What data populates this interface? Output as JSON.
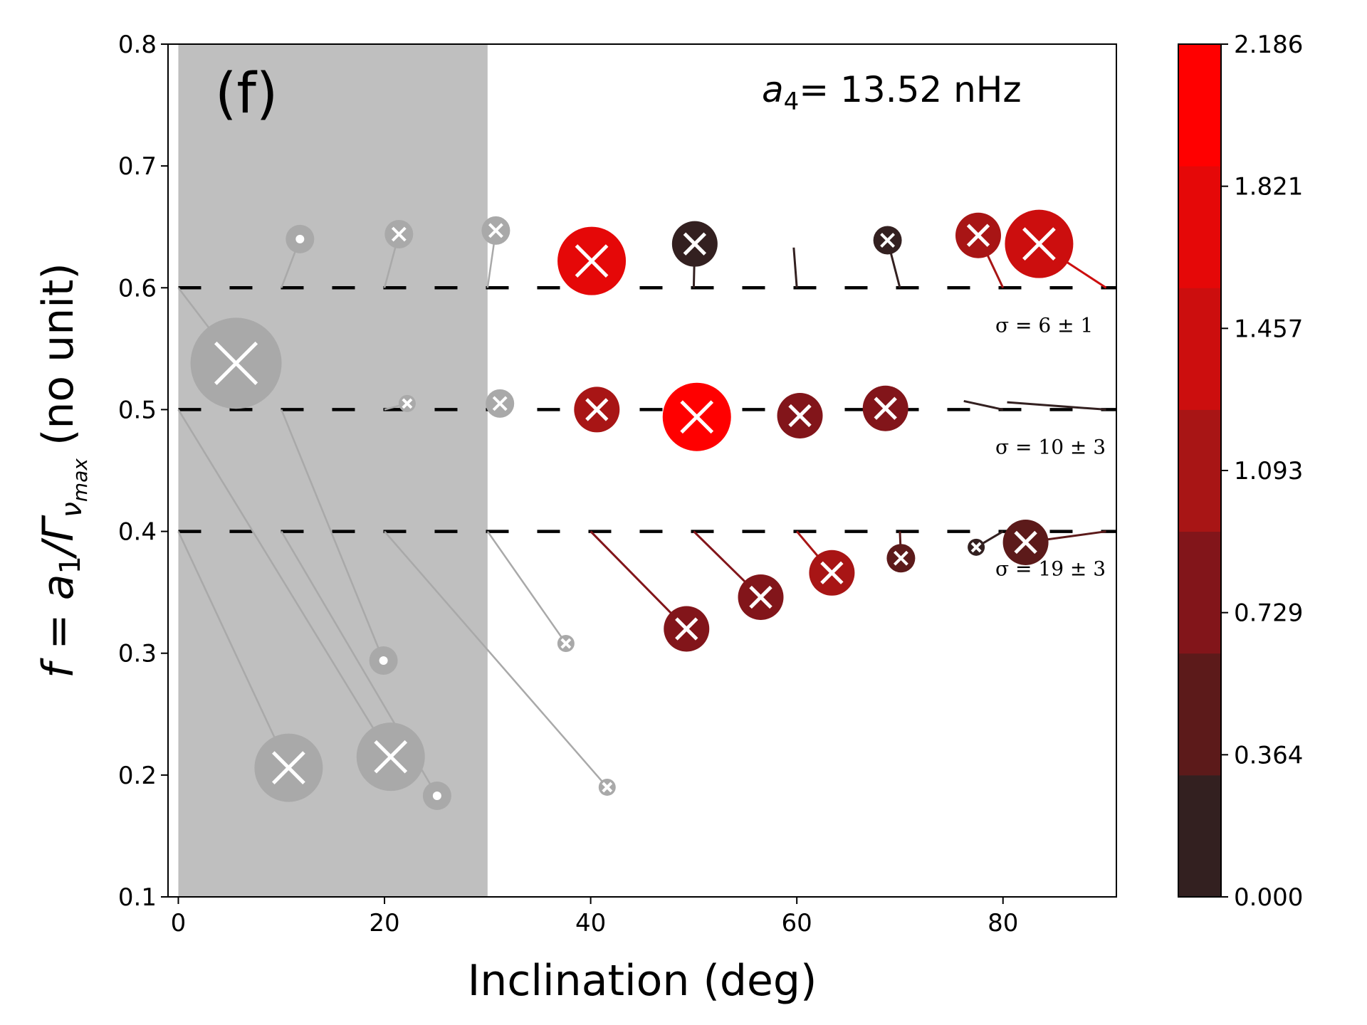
{
  "chart_data": {
    "type": "scatter",
    "panel_label": "(f)",
    "annotation": {
      "symbol": "a",
      "subscript": "4",
      "text": "= 13.52 nHz"
    },
    "xlabel": "Inclination (deg)",
    "ylabel": {
      "prefix": "f = a",
      "sub1": "1",
      "mid": "/Γ",
      "sub2": "ν",
      "sub3": "max",
      "suffix": "(no unit)"
    },
    "xlim": [
      -1,
      91
    ],
    "ylim": [
      0.1,
      0.8
    ],
    "xticks": [
      "0",
      "20",
      "40",
      "60",
      "80"
    ],
    "yticks": [
      "0.1",
      "0.2",
      "0.3",
      "0.4",
      "0.5",
      "0.6",
      "0.7",
      "0.8"
    ],
    "excluded_region": {
      "x": [
        0,
        30
      ],
      "color": "#bfbfbf"
    },
    "reference_levels": [
      {
        "f": 0.6,
        "label": "σ = 6 ± 1"
      },
      {
        "f": 0.5,
        "label": "σ = 10 ± 3"
      },
      {
        "f": 0.4,
        "label": "σ = 19 ± 3"
      }
    ],
    "colorbar": {
      "ticks": [
        "0.000",
        "0.364",
        "0.729",
        "1.093",
        "1.457",
        "1.821",
        "2.186"
      ],
      "colors": [
        "#332020",
        "#5c1a1a",
        "#82151a",
        "#a81515",
        "#cc0e0e",
        "#e50808",
        "#ff0000"
      ],
      "range": [
        0,
        2.186
      ]
    },
    "points": [
      {
        "x0": 10,
        "y0": 0.6,
        "x": 11.8,
        "y": 0.64,
        "size": "small",
        "marker": "dot",
        "value": 0,
        "excluded": true
      },
      {
        "x0": 20,
        "y0": 0.6,
        "x": 21.4,
        "y": 0.644,
        "size": "small",
        "marker": "x",
        "value": 0,
        "excluded": true
      },
      {
        "x0": 30,
        "y0": 0.6,
        "x": 30.8,
        "y": 0.647,
        "size": "small",
        "marker": "x",
        "value": 0,
        "excluded": true
      },
      {
        "x0": 40,
        "y0": 0.6,
        "x": 40.1,
        "y": 0.622,
        "size": "large",
        "marker": "x",
        "value": 1.6,
        "excluded": false
      },
      {
        "x0": 50,
        "y0": 0.6,
        "x": 50.1,
        "y": 0.636,
        "size": "medium",
        "marker": "x",
        "value": 0.3,
        "excluded": false
      },
      {
        "x0": 60,
        "y0": 0.6,
        "x": 59.7,
        "y": 0.633,
        "size": "none",
        "marker": "none",
        "value": 0.2,
        "excluded": false
      },
      {
        "x0": 70,
        "y0": 0.6,
        "x": 68.8,
        "y": 0.639,
        "size": "small",
        "marker": "x",
        "value": 0.3,
        "excluded": false
      },
      {
        "x0": 80,
        "y0": 0.6,
        "x": 77.6,
        "y": 0.643,
        "size": "medium",
        "marker": "x",
        "value": 1.1,
        "excluded": false
      },
      {
        "x0": 90,
        "y0": 0.6,
        "x": 83.5,
        "y": 0.636,
        "size": "large",
        "marker": "x",
        "value": 1.5,
        "excluded": false
      },
      {
        "x0": 0,
        "y0": 0.6,
        "x": 5.6,
        "y": 0.538,
        "size": "xlarge",
        "marker": "x",
        "value": 0,
        "excluded": true
      },
      {
        "x0": 20,
        "y0": 0.5,
        "x": 22.2,
        "y": 0.505,
        "size": "tiny",
        "marker": "x",
        "value": 0,
        "excluded": true
      },
      {
        "x0": 30,
        "y0": 0.5,
        "x": 31.2,
        "y": 0.505,
        "size": "small",
        "marker": "x",
        "value": 0,
        "excluded": true
      },
      {
        "x0": 40,
        "y0": 0.5,
        "x": 40.6,
        "y": 0.5,
        "size": "medium",
        "marker": "x",
        "value": 1.0,
        "excluded": false
      },
      {
        "x0": 50,
        "y0": 0.5,
        "x": 50.3,
        "y": 0.494,
        "size": "large",
        "marker": "x",
        "value": 2.0,
        "excluded": false
      },
      {
        "x0": 60,
        "y0": 0.5,
        "x": 60.3,
        "y": 0.495,
        "size": "medium",
        "marker": "x",
        "value": 0.9,
        "excluded": false
      },
      {
        "x0": 70,
        "y0": 0.5,
        "x": 68.6,
        "y": 0.501,
        "size": "medium",
        "marker": "x",
        "value": 0.9,
        "excluded": false
      },
      {
        "x0": 80,
        "y0": 0.5,
        "x": 76.2,
        "y": 0.507,
        "size": "none",
        "marker": "none",
        "value": 0.1,
        "excluded": false
      },
      {
        "x0": 90,
        "y0": 0.5,
        "x": 80.4,
        "y": 0.506,
        "size": "none",
        "marker": "none",
        "value": 0.1,
        "excluded": false
      },
      {
        "x0": 0,
        "y0": 0.4,
        "x": 10.7,
        "y": 0.206,
        "size": "large",
        "marker": "x",
        "value": 0,
        "excluded": true
      },
      {
        "x0": 0,
        "y0": 0.5,
        "x": 20.6,
        "y": 0.215,
        "size": "large",
        "marker": "x",
        "value": 0,
        "excluded": true
      },
      {
        "x0": 10,
        "y0": 0.5,
        "x": 19.9,
        "y": 0.294,
        "size": "small",
        "marker": "dot",
        "value": 0,
        "excluded": true
      },
      {
        "x0": 10,
        "y0": 0.4,
        "x": 25.1,
        "y": 0.183,
        "size": "small",
        "marker": "dot",
        "value": 0,
        "excluded": true
      },
      {
        "x0": 30,
        "y0": 0.4,
        "x": 37.6,
        "y": 0.308,
        "size": "tiny",
        "marker": "x",
        "value": 0,
        "excluded": true
      },
      {
        "x0": 20,
        "y0": 0.4,
        "x": 41.6,
        "y": 0.19,
        "size": "tiny",
        "marker": "x",
        "value": 0,
        "excluded": true
      },
      {
        "x0": 40,
        "y0": 0.4,
        "x": 49.3,
        "y": 0.32,
        "size": "medium",
        "marker": "x",
        "value": 0.9,
        "excluded": false
      },
      {
        "x0": 50,
        "y0": 0.4,
        "x": 56.5,
        "y": 0.346,
        "size": "medium",
        "marker": "x",
        "value": 0.9,
        "excluded": false
      },
      {
        "x0": 60,
        "y0": 0.4,
        "x": 63.4,
        "y": 0.366,
        "size": "medium",
        "marker": "x",
        "value": 1.0,
        "excluded": false
      },
      {
        "x0": 70,
        "y0": 0.4,
        "x": 70.1,
        "y": 0.378,
        "size": "small",
        "marker": "x",
        "value": 0.6,
        "excluded": false
      },
      {
        "x0": 80,
        "y0": 0.4,
        "x": 77.4,
        "y": 0.387,
        "size": "tiny",
        "marker": "x",
        "value": 0.2,
        "excluded": false
      },
      {
        "x0": 90,
        "y0": 0.4,
        "x": 82.2,
        "y": 0.391,
        "size": "medium",
        "marker": "x",
        "value": 0.6,
        "excluded": false
      }
    ]
  }
}
